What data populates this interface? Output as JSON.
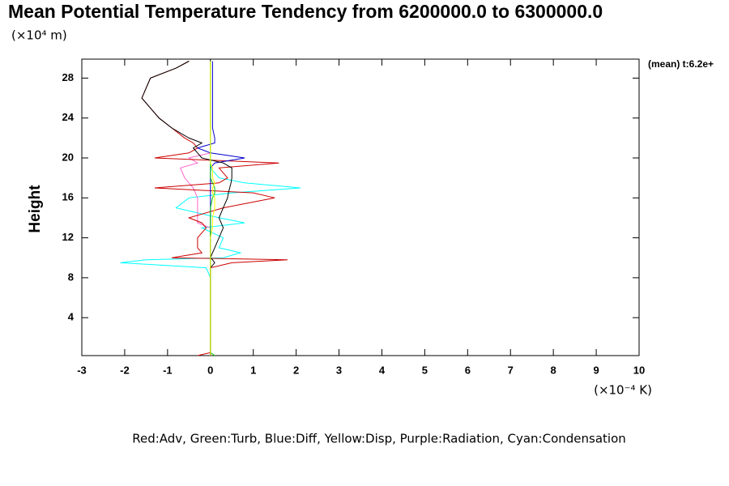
{
  "chart_data": {
    "type": "line",
    "title": "Mean Potential Temperature Tendency from 6200000.0 to 6300000.0",
    "y_unit": "(×10⁴ m)",
    "ylabel": "Height",
    "x_unit": "(×10⁻⁴ K)",
    "corner_label": "(mean) t:6.2e+",
    "footer": "Red:Adv, Green:Turb, Blue:Diff, Yellow:Disp, Purple:Radiation, Cyan:Condensation",
    "xlim": [
      -3,
      10
    ],
    "xticks": [
      -3,
      -2,
      -1,
      0,
      1,
      2,
      3,
      4,
      5,
      6,
      7,
      8,
      9,
      10
    ],
    "ylim": [
      0.2,
      29.9
    ],
    "yticks": [
      4,
      8,
      12,
      16,
      20,
      24,
      28
    ],
    "y": [
      0.2,
      0.5,
      1,
      2,
      4,
      6,
      8,
      9,
      9.5,
      9.8,
      10,
      10.5,
      11,
      12,
      13,
      13.5,
      14,
      15,
      16,
      16.5,
      17,
      17.5,
      18,
      19,
      19.5,
      20,
      20.5,
      21,
      21.5,
      22,
      23,
      24,
      25,
      26,
      27,
      28,
      29,
      29.7
    ],
    "series": [
      {
        "color": "#00ffff",
        "values": [
          0,
          0,
          0,
          0,
          0,
          0,
          0,
          -0.1,
          -2.1,
          -1.5,
          0.3,
          0.7,
          0.2,
          0.3,
          -0.2,
          0.8,
          0.2,
          -0.8,
          -0.5,
          0.5,
          2.1,
          0.8,
          0.2,
          0,
          0,
          0,
          0,
          0,
          0,
          0,
          0,
          0,
          0,
          0,
          0,
          0,
          0,
          0
        ]
      },
      {
        "color": "#ff66cc",
        "values": [
          0,
          0,
          0,
          0,
          0,
          0,
          0,
          0,
          0,
          0,
          0,
          0,
          0,
          0,
          0,
          -0.3,
          -0.3,
          -0.3,
          -0.3,
          -0.35,
          -0.4,
          -0.5,
          -0.6,
          -0.7,
          -0.3,
          -0.5,
          0,
          0,
          0,
          0,
          0,
          0,
          0,
          0,
          0,
          0,
          0,
          0
        ]
      },
      {
        "color": "#cc0000",
        "values": [
          -0.3,
          0,
          0,
          0,
          0,
          0,
          0,
          0,
          0.5,
          1.8,
          -0.9,
          -0.2,
          -0.3,
          -0.3,
          -0.1,
          -0.2,
          -0.5,
          0.3,
          1.5,
          1.0,
          -1.3,
          0.2,
          0.4,
          0.2,
          1.6,
          -1.3,
          -0.5,
          -0.3,
          -0.4,
          -0.6,
          -0.9,
          -1.2,
          -1.4,
          -1.6,
          -1.5,
          -1.4,
          -0.8,
          -0.5
        ]
      },
      {
        "color": "#0000cc",
        "values": [
          0,
          0,
          0,
          0,
          0,
          0,
          0,
          0,
          0,
          0,
          0,
          0,
          0,
          0,
          0,
          0,
          0,
          0,
          0,
          0,
          0,
          0,
          0,
          0,
          0.1,
          0.8,
          0,
          -0.3,
          0.1,
          0.1,
          0.05,
          0.05,
          0.05,
          0.05,
          0.05,
          0.05,
          0.05,
          0.05
        ]
      },
      {
        "color": "#000000",
        "values": [
          0,
          0,
          0,
          0,
          0,
          0,
          0,
          0,
          0.1,
          0.05,
          0,
          0.05,
          0.1,
          0.2,
          0.3,
          0.25,
          0.2,
          0.3,
          0.4,
          0.42,
          0.45,
          0.48,
          0.5,
          0.5,
          0.3,
          -0.2,
          -0.3,
          -0.4,
          -0.2,
          -0.5,
          -0.9,
          -1.2,
          -1.4,
          -1.6,
          -1.5,
          -1.4,
          -0.8,
          -0.5
        ]
      },
      {
        "color": "#00cc00",
        "values": [
          0.1,
          0,
          0,
          0,
          0,
          0,
          0,
          0,
          0,
          0,
          0,
          0,
          0,
          0,
          0,
          0,
          0,
          0,
          0.05,
          0.1,
          0.1,
          0.05,
          0,
          0,
          0,
          0,
          0,
          0,
          0,
          0,
          0,
          0,
          0,
          0,
          0,
          0,
          0,
          0
        ]
      },
      {
        "color": "#ffff00",
        "values": [
          0,
          0,
          0,
          0,
          0,
          0,
          0,
          0,
          0,
          0,
          0,
          0,
          0,
          0,
          0.05,
          0.05,
          0.05,
          0.1,
          0.1,
          0.05,
          0.05,
          0.1,
          0.05,
          0.05,
          0,
          0,
          0,
          0,
          0,
          0,
          0,
          0,
          0,
          0,
          0,
          0,
          0,
          0
        ]
      }
    ]
  }
}
